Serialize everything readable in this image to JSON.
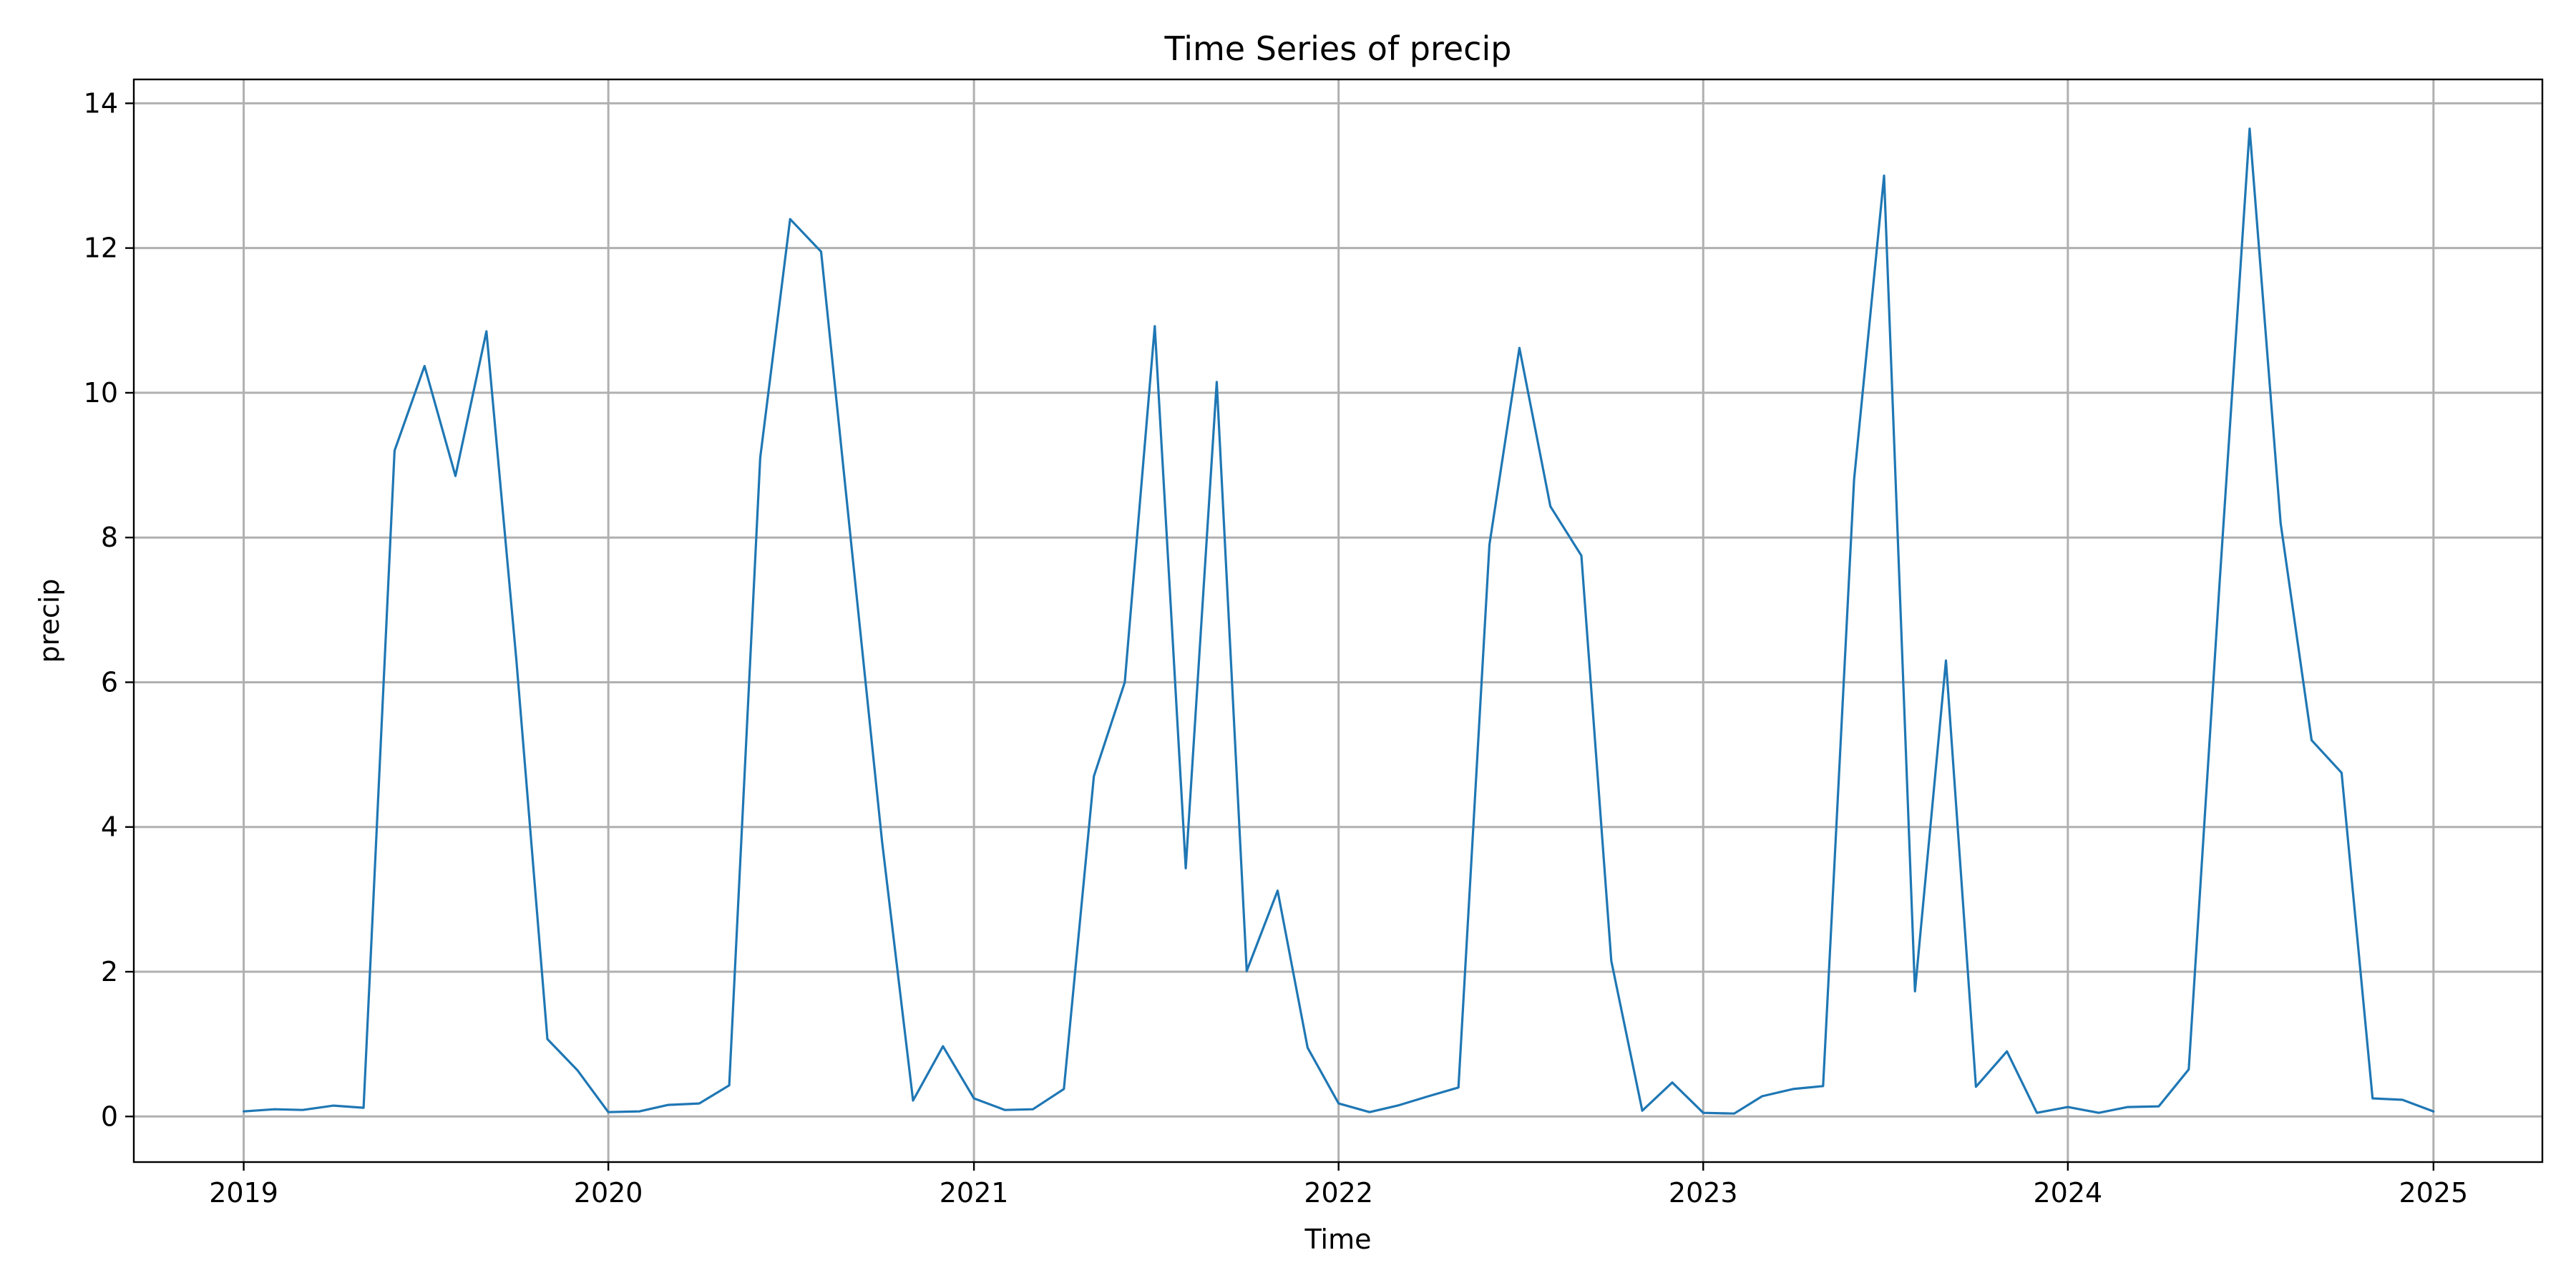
{
  "chart_data": {
    "type": "line",
    "title": "Time Series of precip",
    "xlabel": "Time",
    "ylabel": "precip",
    "x_ticks": [
      "2019",
      "2020",
      "2021",
      "2022",
      "2023",
      "2024",
      "2025"
    ],
    "y_ticks": [
      "0",
      "2",
      "4",
      "6",
      "8",
      "10",
      "12",
      "14"
    ],
    "xlim": [
      "2018-09-13",
      "2025-04-20"
    ],
    "ylim": [
      -0.63,
      14.33
    ],
    "grid": true,
    "legend": "none",
    "series": [
      {
        "color": "#1f77b4",
        "x": [
          "2019-01-01",
          "2019-02-01",
          "2019-03-01",
          "2019-04-01",
          "2019-05-01",
          "2019-06-01",
          "2019-07-01",
          "2019-08-01",
          "2019-09-01",
          "2019-10-01",
          "2019-11-01",
          "2019-12-01",
          "2020-01-01",
          "2020-02-01",
          "2020-03-01",
          "2020-04-01",
          "2020-05-01",
          "2020-06-01",
          "2020-07-01",
          "2020-08-01",
          "2020-09-01",
          "2020-10-01",
          "2020-11-01",
          "2020-12-01",
          "2021-01-01",
          "2021-02-01",
          "2021-03-01",
          "2021-04-01",
          "2021-05-01",
          "2021-06-01",
          "2021-07-01",
          "2021-08-01",
          "2021-09-01",
          "2021-10-01",
          "2021-11-01",
          "2021-12-01",
          "2022-01-01",
          "2022-02-01",
          "2022-03-01",
          "2022-04-01",
          "2022-05-01",
          "2022-06-01",
          "2022-07-01",
          "2022-08-01",
          "2022-09-01",
          "2022-10-01",
          "2022-11-01",
          "2022-12-01",
          "2023-01-01",
          "2023-02-01",
          "2023-03-01",
          "2023-04-01",
          "2023-05-01",
          "2023-06-01",
          "2023-07-01",
          "2023-08-01",
          "2023-09-01",
          "2023-10-01",
          "2023-11-01",
          "2023-12-01",
          "2024-01-01",
          "2024-02-01",
          "2024-03-01",
          "2024-04-01",
          "2024-05-01",
          "2024-06-01",
          "2024-07-01",
          "2024-08-01",
          "2024-09-01",
          "2024-10-01",
          "2024-11-01",
          "2024-12-01",
          "2025-01-01"
        ],
        "y": [
          0.07,
          0.1,
          0.09,
          0.15,
          0.12,
          9.2,
          10.37,
          8.85,
          10.85,
          6.3,
          1.07,
          0.64,
          0.06,
          0.07,
          0.16,
          0.18,
          0.43,
          9.1,
          12.4,
          11.95,
          7.8,
          3.8,
          0.22,
          0.97,
          0.25,
          0.09,
          0.1,
          0.38,
          4.7,
          6.0,
          10.92,
          3.43,
          10.15,
          2.01,
          3.12,
          0.95,
          0.18,
          0.06,
          0.15,
          0.28,
          0.4,
          7.9,
          10.62,
          8.43,
          7.75,
          2.15,
          0.08,
          0.47,
          0.05,
          0.04,
          0.28,
          0.38,
          0.42,
          8.8,
          13.0,
          1.73,
          6.3,
          0.41,
          0.9,
          0.05,
          0.13,
          0.05,
          0.13,
          0.14,
          0.65,
          7.4,
          13.65,
          8.2,
          5.2,
          4.75,
          0.25,
          0.23,
          0.07
        ]
      }
    ]
  }
}
